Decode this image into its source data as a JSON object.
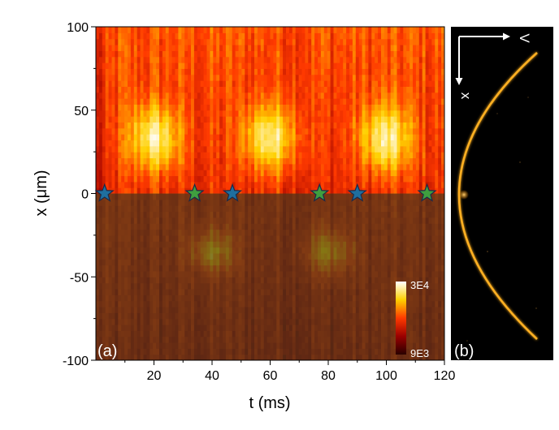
{
  "chart_data": [
    {
      "type": "heatmap",
      "panel_label": "(a)",
      "xlabel": "t (ms)",
      "ylabel": "x (μm)",
      "xlim": [
        0,
        120
      ],
      "ylim": [
        -100,
        100
      ],
      "x_ticks": [
        20,
        40,
        60,
        80,
        100,
        120
      ],
      "y_ticks": [
        -100,
        -50,
        0,
        50,
        100
      ],
      "colormap": "black-red-yellow-white",
      "colorbar": {
        "min_label": "9E3",
        "max_label": "3E4",
        "min": 9000,
        "max": 30000,
        "placement": "bottom-right"
      },
      "lower_half_dimmed": true,
      "intensity_blobs": [
        {
          "t_center": 20,
          "x_center": 33,
          "t_width": 18,
          "x_width": 40
        },
        {
          "t_center": 60,
          "x_center": 33,
          "t_width": 18,
          "x_width": 40
        },
        {
          "t_center": 100,
          "x_center": 33,
          "t_width": 18,
          "x_width": 40
        },
        {
          "t_center": 40,
          "x_center": -35,
          "t_width": 16,
          "x_width": 26
        },
        {
          "t_center": 80,
          "x_center": -35,
          "t_width": 16,
          "x_width": 26
        }
      ],
      "markers": [
        {
          "t": 3,
          "x": 0,
          "color": "blue"
        },
        {
          "t": 34,
          "x": 0,
          "color": "green"
        },
        {
          "t": 47,
          "x": 0,
          "color": "blue"
        },
        {
          "t": 77,
          "x": 0,
          "color": "green"
        },
        {
          "t": 90,
          "x": 0,
          "color": "blue"
        },
        {
          "t": 114,
          "x": 0,
          "color": "green"
        }
      ],
      "colors": {
        "star_blue": "#1f6f9f",
        "star_green": "#3f9f3f",
        "star_stroke": "#1a2a4a"
      }
    },
    {
      "type": "image",
      "panel_label": "(b)",
      "axis_labels": {
        "horizontal": "V",
        "vertical": "x"
      },
      "colors": {
        "background": "#000000",
        "arc": "#ffb020"
      }
    }
  ]
}
